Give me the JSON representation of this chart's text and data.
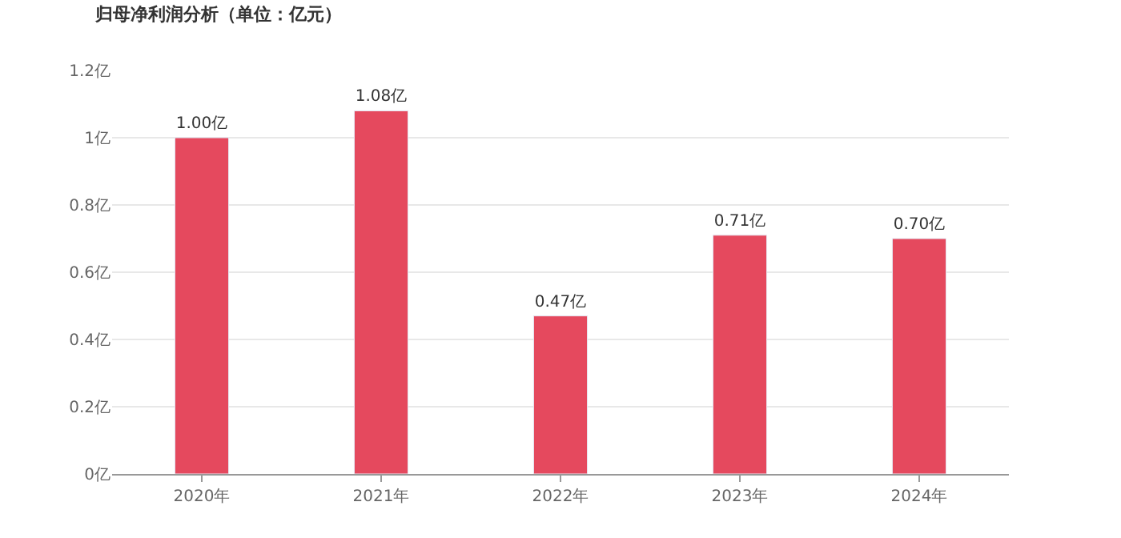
{
  "chart_data": {
    "type": "bar",
    "title": "归母净利润分析（单位：亿元）",
    "categories": [
      "2020年",
      "2021年",
      "2022年",
      "2023年",
      "2024年"
    ],
    "values": [
      1.0,
      1.08,
      0.47,
      0.71,
      0.7
    ],
    "value_labels": [
      "1.00亿",
      "1.08亿",
      "0.47亿",
      "0.71亿",
      "0.70亿"
    ],
    "color": "#e5495e",
    "ylim": [
      0,
      1.2
    ],
    "yticks": [
      {
        "value": 0,
        "label": "0亿"
      },
      {
        "value": 0.2,
        "label": "0.2亿"
      },
      {
        "value": 0.4,
        "label": "0.4亿"
      },
      {
        "value": 0.6,
        "label": "0.6亿"
      },
      {
        "value": 0.8,
        "label": "0.8亿"
      },
      {
        "value": 1,
        "label": "1亿"
      },
      {
        "value": 1.2,
        "label": "1.2亿"
      }
    ],
    "grid": "y"
  }
}
